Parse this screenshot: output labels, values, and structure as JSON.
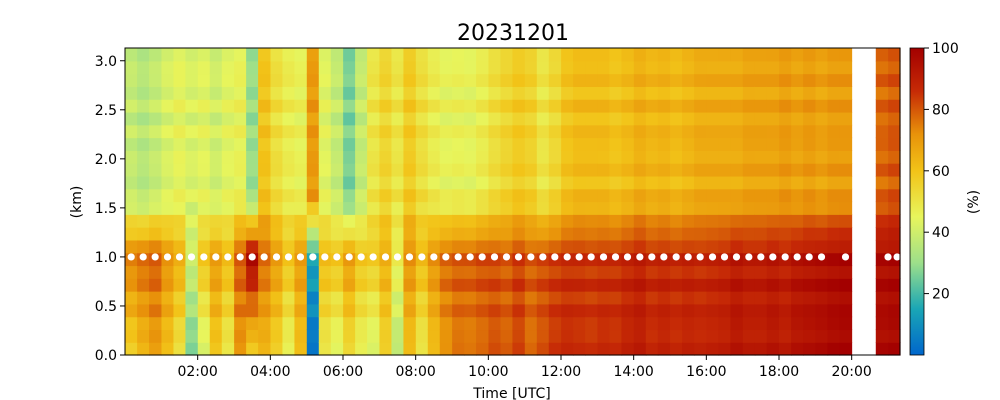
{
  "chart_data": {
    "type": "heatmap",
    "title": "20231201",
    "xlabel": "Time [UTC]",
    "ylabel": "(km)",
    "colorbar_label": "(%)",
    "xlim": [
      0.0,
      21.33
    ],
    "ylim": [
      0.0,
      3.13
    ],
    "x_ticks": [
      2,
      4,
      6,
      8,
      10,
      12,
      14,
      16,
      18,
      20
    ],
    "x_tick_labels": [
      "02:00",
      "04:00",
      "06:00",
      "08:00",
      "10:00",
      "12:00",
      "14:00",
      "16:00",
      "18:00",
      "20:00"
    ],
    "y_ticks": [
      0.0,
      0.5,
      1.0,
      1.5,
      2.0,
      2.5,
      3.0
    ],
    "y_tick_labels": [
      "0.0",
      "0.5",
      "1.0",
      "1.5",
      "2.0",
      "2.5",
      "3.0"
    ],
    "color_range": [
      0,
      100
    ],
    "colorbar_ticks": [
      20,
      40,
      60,
      80,
      100
    ],
    "colorbar_tick_labels": [
      "20",
      "40",
      "60",
      "80",
      "100"
    ],
    "colormap_stops": [
      "#0066cc",
      "#1aa6b5",
      "#9ddf8a",
      "#e8f55c",
      "#f2c318",
      "#e8920a",
      "#c62a06",
      "#a30000"
    ],
    "missing_interval": [
      20.0,
      20.62
    ],
    "time_step_hours": 0.333,
    "column_times_hours": [
      0.17,
      0.5,
      0.83,
      1.17,
      1.5,
      1.83,
      2.17,
      2.5,
      2.83,
      3.17,
      3.5,
      3.83,
      4.17,
      4.5,
      4.83,
      5.17,
      5.5,
      5.83,
      6.17,
      6.5,
      6.83,
      7.17,
      7.5,
      7.83,
      8.17,
      8.5,
      8.83,
      9.17,
      9.5,
      9.83,
      10.17,
      10.5,
      10.83,
      11.17,
      11.5,
      11.83,
      12.17,
      12.5,
      12.83,
      13.17,
      13.5,
      13.83,
      14.17,
      14.5,
      14.83,
      15.17,
      15.5,
      15.83,
      16.17,
      16.5,
      16.83,
      17.17,
      17.5,
      17.83,
      18.17,
      18.5,
      18.83,
      19.17,
      19.5,
      19.83,
      20.83,
      21.17
    ],
    "column_profiles": {
      "description_keys": [
        "below_1km",
        "at_1km",
        "above_1km"
      ],
      "values": [
        [
          55,
          75,
          38
        ],
        [
          62,
          78,
          35
        ],
        [
          68,
          80,
          38
        ],
        [
          60,
          72,
          42
        ],
        [
          50,
          65,
          45
        ],
        [
          25,
          40,
          42
        ],
        [
          40,
          60,
          44
        ],
        [
          58,
          70,
          40
        ],
        [
          48,
          62,
          44
        ],
        [
          70,
          80,
          46
        ],
        [
          55,
          98,
          30
        ],
        [
          62,
          78,
          60
        ],
        [
          55,
          70,
          52
        ],
        [
          45,
          60,
          48
        ],
        [
          60,
          70,
          46
        ],
        [
          2,
          15,
          70
        ],
        [
          48,
          62,
          44
        ],
        [
          42,
          60,
          38
        ],
        [
          52,
          70,
          26
        ],
        [
          45,
          60,
          38
        ],
        [
          40,
          58,
          50
        ],
        [
          55,
          65,
          55
        ],
        [
          35,
          48,
          50
        ],
        [
          60,
          72,
          58
        ],
        [
          48,
          62,
          52
        ],
        [
          60,
          72,
          48
        ],
        [
          70,
          78,
          45
        ],
        [
          75,
          80,
          46
        ],
        [
          74,
          80,
          45
        ],
        [
          76,
          82,
          48
        ],
        [
          80,
          82,
          52
        ],
        [
          78,
          80,
          55
        ],
        [
          82,
          84,
          58
        ],
        [
          76,
          80,
          56
        ],
        [
          80,
          82,
          50
        ],
        [
          84,
          84,
          54
        ],
        [
          86,
          86,
          60
        ],
        [
          85,
          86,
          62
        ],
        [
          84,
          85,
          62
        ],
        [
          86,
          86,
          62
        ],
        [
          85,
          86,
          60
        ],
        [
          88,
          88,
          62
        ],
        [
          90,
          90,
          65
        ],
        [
          86,
          87,
          63
        ],
        [
          88,
          88,
          64
        ],
        [
          86,
          87,
          62
        ],
        [
          88,
          88,
          64
        ],
        [
          87,
          87,
          66
        ],
        [
          88,
          88,
          66
        ],
        [
          89,
          89,
          66
        ],
        [
          92,
          92,
          66
        ],
        [
          90,
          90,
          68
        ],
        [
          90,
          90,
          68
        ],
        [
          92,
          92,
          68
        ],
        [
          90,
          90,
          70
        ],
        [
          93,
          93,
          68
        ],
        [
          94,
          94,
          70
        ],
        [
          95,
          95,
          68
        ],
        [
          97,
          96,
          70
        ],
        [
          98,
          97,
          70
        ],
        [
          96,
          96,
          78
        ],
        [
          97,
          97,
          80
        ]
      ]
    },
    "marker_height_km": 1.0,
    "marker_times_hours": [
      0.17,
      0.5,
      0.83,
      1.17,
      1.5,
      1.83,
      2.17,
      2.5,
      2.83,
      3.17,
      3.5,
      3.83,
      4.17,
      4.5,
      4.83,
      5.17,
      5.5,
      5.83,
      6.17,
      6.5,
      6.83,
      7.17,
      7.5,
      7.83,
      8.17,
      8.5,
      8.83,
      9.17,
      9.5,
      9.83,
      10.17,
      10.5,
      10.83,
      11.17,
      11.5,
      11.83,
      12.17,
      12.5,
      12.83,
      13.17,
      13.5,
      13.83,
      14.17,
      14.5,
      14.83,
      15.17,
      15.5,
      15.83,
      16.17,
      16.5,
      16.83,
      17.17,
      17.5,
      17.83,
      18.17,
      18.5,
      18.83,
      19.17,
      19.83,
      21.0,
      21.25
    ],
    "marker_color": "#ffffff"
  }
}
